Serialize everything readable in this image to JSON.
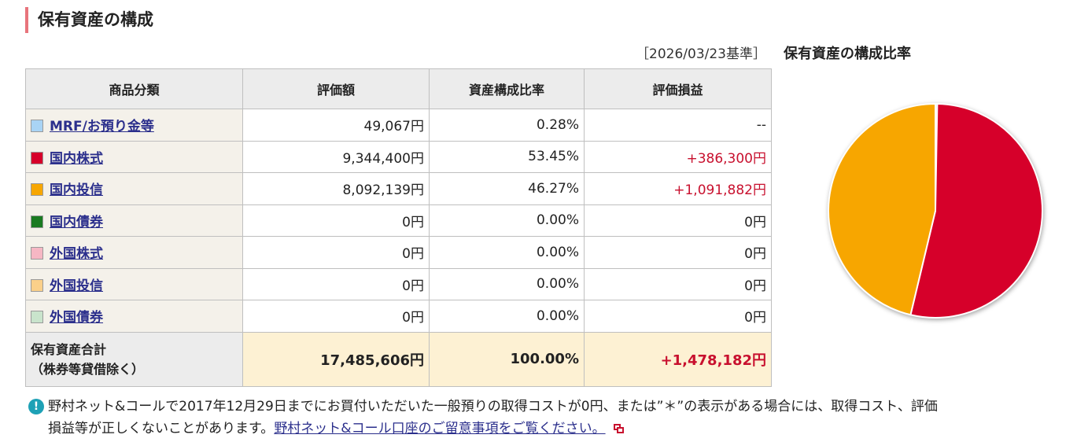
{
  "section": {
    "title": "保有資産の構成"
  },
  "as_of": "［2026/03/23基準］",
  "table": {
    "headers": [
      "商品分類",
      "評価額",
      "資産構成比率",
      "評価損益"
    ],
    "rows": [
      {
        "label": "MRF/お預り金等",
        "swatch": "#a9d4f5",
        "value": "49,067円",
        "ratio": "0.28%",
        "pl": "--",
        "pl_red": false
      },
      {
        "label": "国内株式",
        "swatch": "#d6002a",
        "value": "9,344,400円",
        "ratio": "53.45%",
        "pl": "+386,300円",
        "pl_red": true
      },
      {
        "label": "国内投信",
        "swatch": "#f7a600",
        "value": "8,092,139円",
        "ratio": "46.27%",
        "pl": "+1,091,882円",
        "pl_red": true
      },
      {
        "label": "国内債券",
        "swatch": "#1a7a21",
        "value": "0円",
        "ratio": "0.00%",
        "pl": "0円",
        "pl_red": false
      },
      {
        "label": "外国株式",
        "swatch": "#f6b7c4",
        "value": "0円",
        "ratio": "0.00%",
        "pl": "0円",
        "pl_red": false
      },
      {
        "label": "外国投信",
        "swatch": "#fbd08a",
        "value": "0円",
        "ratio": "0.00%",
        "pl": "0円",
        "pl_red": false
      },
      {
        "label": "外国債券",
        "swatch": "#c9e4cc",
        "value": "0円",
        "ratio": "0.00%",
        "pl": "0円",
        "pl_red": false
      }
    ],
    "total": {
      "label_line1": "保有資産合計",
      "label_line2": "（株券等貸借除く）",
      "value": "17,485,606円",
      "ratio": "100.00%",
      "pl": "+1,478,182円"
    }
  },
  "chart_title": "保有資産の構成比率",
  "chart_data": {
    "type": "pie",
    "slices": [
      {
        "category": "MRF/お預り金等",
        "value": 0.28,
        "color": "#a9d4f5"
      },
      {
        "category": "国内株式",
        "value": 53.45,
        "color": "#d6002a"
      },
      {
        "category": "国内投信",
        "value": 46.27,
        "color": "#f7a600"
      }
    ]
  },
  "notice": {
    "icon": "info-exclamation-icon",
    "line1": "野村ネット&コールで2017年12月29日までにお買付いただいた一般預りの取得コストが0円、または”＊”の表示がある場合には、取得コスト、評価",
    "line2_prefix": "損益等が正しくないことがあります。",
    "link_text": "野村ネット&コール口座のご留意事項をご覧ください。",
    "link_icon": "external-window-icon"
  }
}
